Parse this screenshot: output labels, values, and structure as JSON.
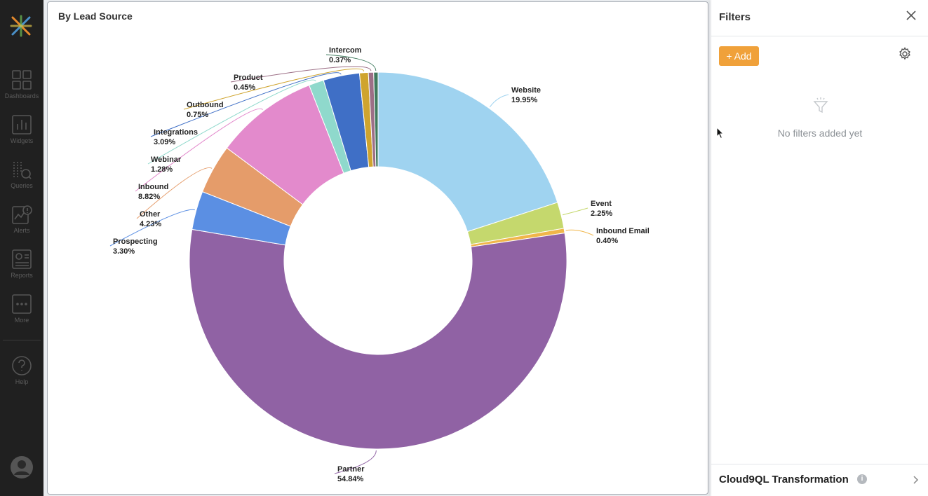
{
  "nav": {
    "items": [
      {
        "label": "Dashboards",
        "icon": "grid-icon"
      },
      {
        "label": "Widgets",
        "icon": "bar-chart-icon"
      },
      {
        "label": "Queries",
        "icon": "query-icon"
      },
      {
        "label": "Alerts",
        "icon": "alert-icon"
      },
      {
        "label": "Reports",
        "icon": "report-icon"
      },
      {
        "label": "More",
        "icon": "more-icon"
      },
      {
        "label": "Help",
        "icon": "help-icon"
      }
    ]
  },
  "chart": {
    "title": "By Lead Source"
  },
  "chart_data": {
    "type": "pie",
    "title": "By Lead Source",
    "donut": true,
    "slices": [
      {
        "name": "Website",
        "value": 19.95,
        "label": "19.95%",
        "color": "#9fd3f0"
      },
      {
        "name": "Event",
        "value": 2.25,
        "label": "2.25%",
        "color": "#c5d86d"
      },
      {
        "name": "Inbound Email",
        "value": 0.4,
        "label": "0.40%",
        "color": "#f0b64a"
      },
      {
        "name": "Partner",
        "value": 54.84,
        "label": "54.84%",
        "color": "#9062a4"
      },
      {
        "name": "Prospecting",
        "value": 3.3,
        "label": "3.30%",
        "color": "#5b8fe3"
      },
      {
        "name": "Other",
        "value": 4.23,
        "label": "4.23%",
        "color": "#e59c6a"
      },
      {
        "name": "Inbound",
        "value": 8.82,
        "label": "8.82%",
        "color": "#e38acc"
      },
      {
        "name": "Webinar",
        "value": 1.28,
        "label": "1.28%",
        "color": "#8fd9cc"
      },
      {
        "name": "Integrations",
        "value": 3.09,
        "label": "3.09%",
        "color": "#3f6fc6"
      },
      {
        "name": "Outbound",
        "value": 0.75,
        "label": "0.75%",
        "color": "#cfa42e"
      },
      {
        "name": "Product",
        "value": 0.45,
        "label": "0.45%",
        "color": "#9c6f86"
      },
      {
        "name": "Intercom",
        "value": 0.37,
        "label": "0.37%",
        "color": "#3f7a5d"
      }
    ]
  },
  "filters": {
    "title": "Filters",
    "add_label": "+ Add",
    "empty_text": "No filters added yet",
    "transformation_label": "Cloud9QL Transformation",
    "info_glyph": "i"
  }
}
